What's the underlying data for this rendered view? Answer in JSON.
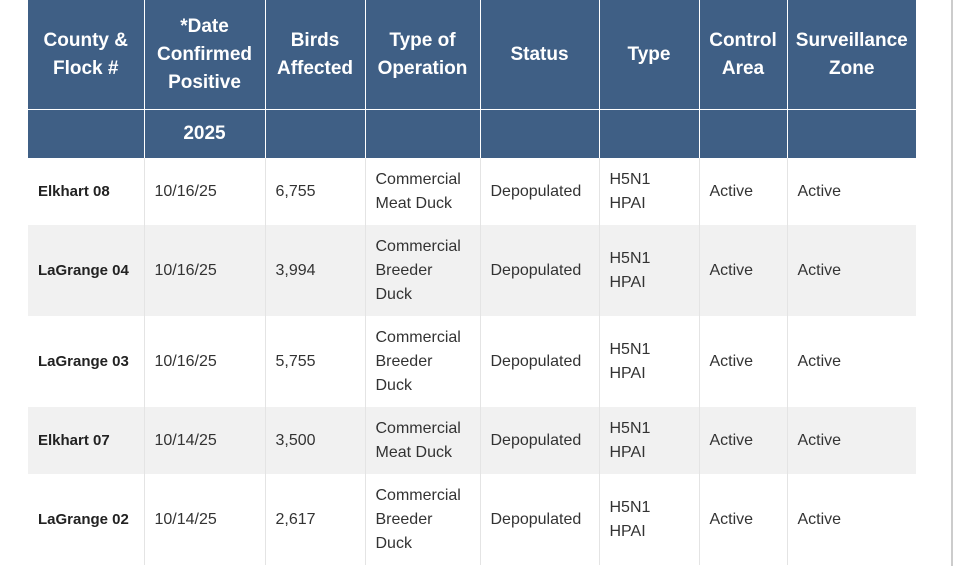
{
  "headers": [
    "County & Flock #",
    "*Date Confirmed Positive",
    "Birds Affected",
    "Type of Operation",
    "Status",
    "Type",
    "Control Area",
    "Surveillance Zone"
  ],
  "year_label": "2025",
  "rows": [
    {
      "county": "Elkhart 08",
      "date": "10/16/25",
      "birds": "6,755",
      "operation": "Commercial Meat Duck",
      "status": "Depopulated",
      "type": "H5N1 HPAI",
      "control": "Active",
      "surveillance": "Active"
    },
    {
      "county": "LaGrange 04",
      "date": "10/16/25",
      "birds": "3,994",
      "operation": "Commercial Breeder Duck",
      "status": "Depopulated",
      "type": "H5N1 HPAI",
      "control": "Active",
      "surveillance": "Active"
    },
    {
      "county": "LaGrange 03",
      "date": "10/16/25",
      "birds": "5,755",
      "operation": "Commercial Breeder Duck",
      "status": "Depopulated",
      "type": "H5N1 HPAI",
      "control": "Active",
      "surveillance": "Active"
    },
    {
      "county": "Elkhart 07",
      "date": "10/14/25",
      "birds": "3,500",
      "operation": "Commercial Meat Duck",
      "status": "Depopulated",
      "type": "H5N1 HPAI",
      "control": "Active",
      "surveillance": "Active"
    },
    {
      "county": "LaGrange 02",
      "date": "10/14/25",
      "birds": "2,617",
      "operation": "Commercial Breeder Duck",
      "status": "Depopulated",
      "type": "H5N1 HPAI",
      "control": "Active",
      "surveillance": "Active"
    }
  ],
  "colors": {
    "header_bg": "#3f5f85",
    "header_text": "#ffffff",
    "row_alt_bg": "#f1f1f1"
  }
}
